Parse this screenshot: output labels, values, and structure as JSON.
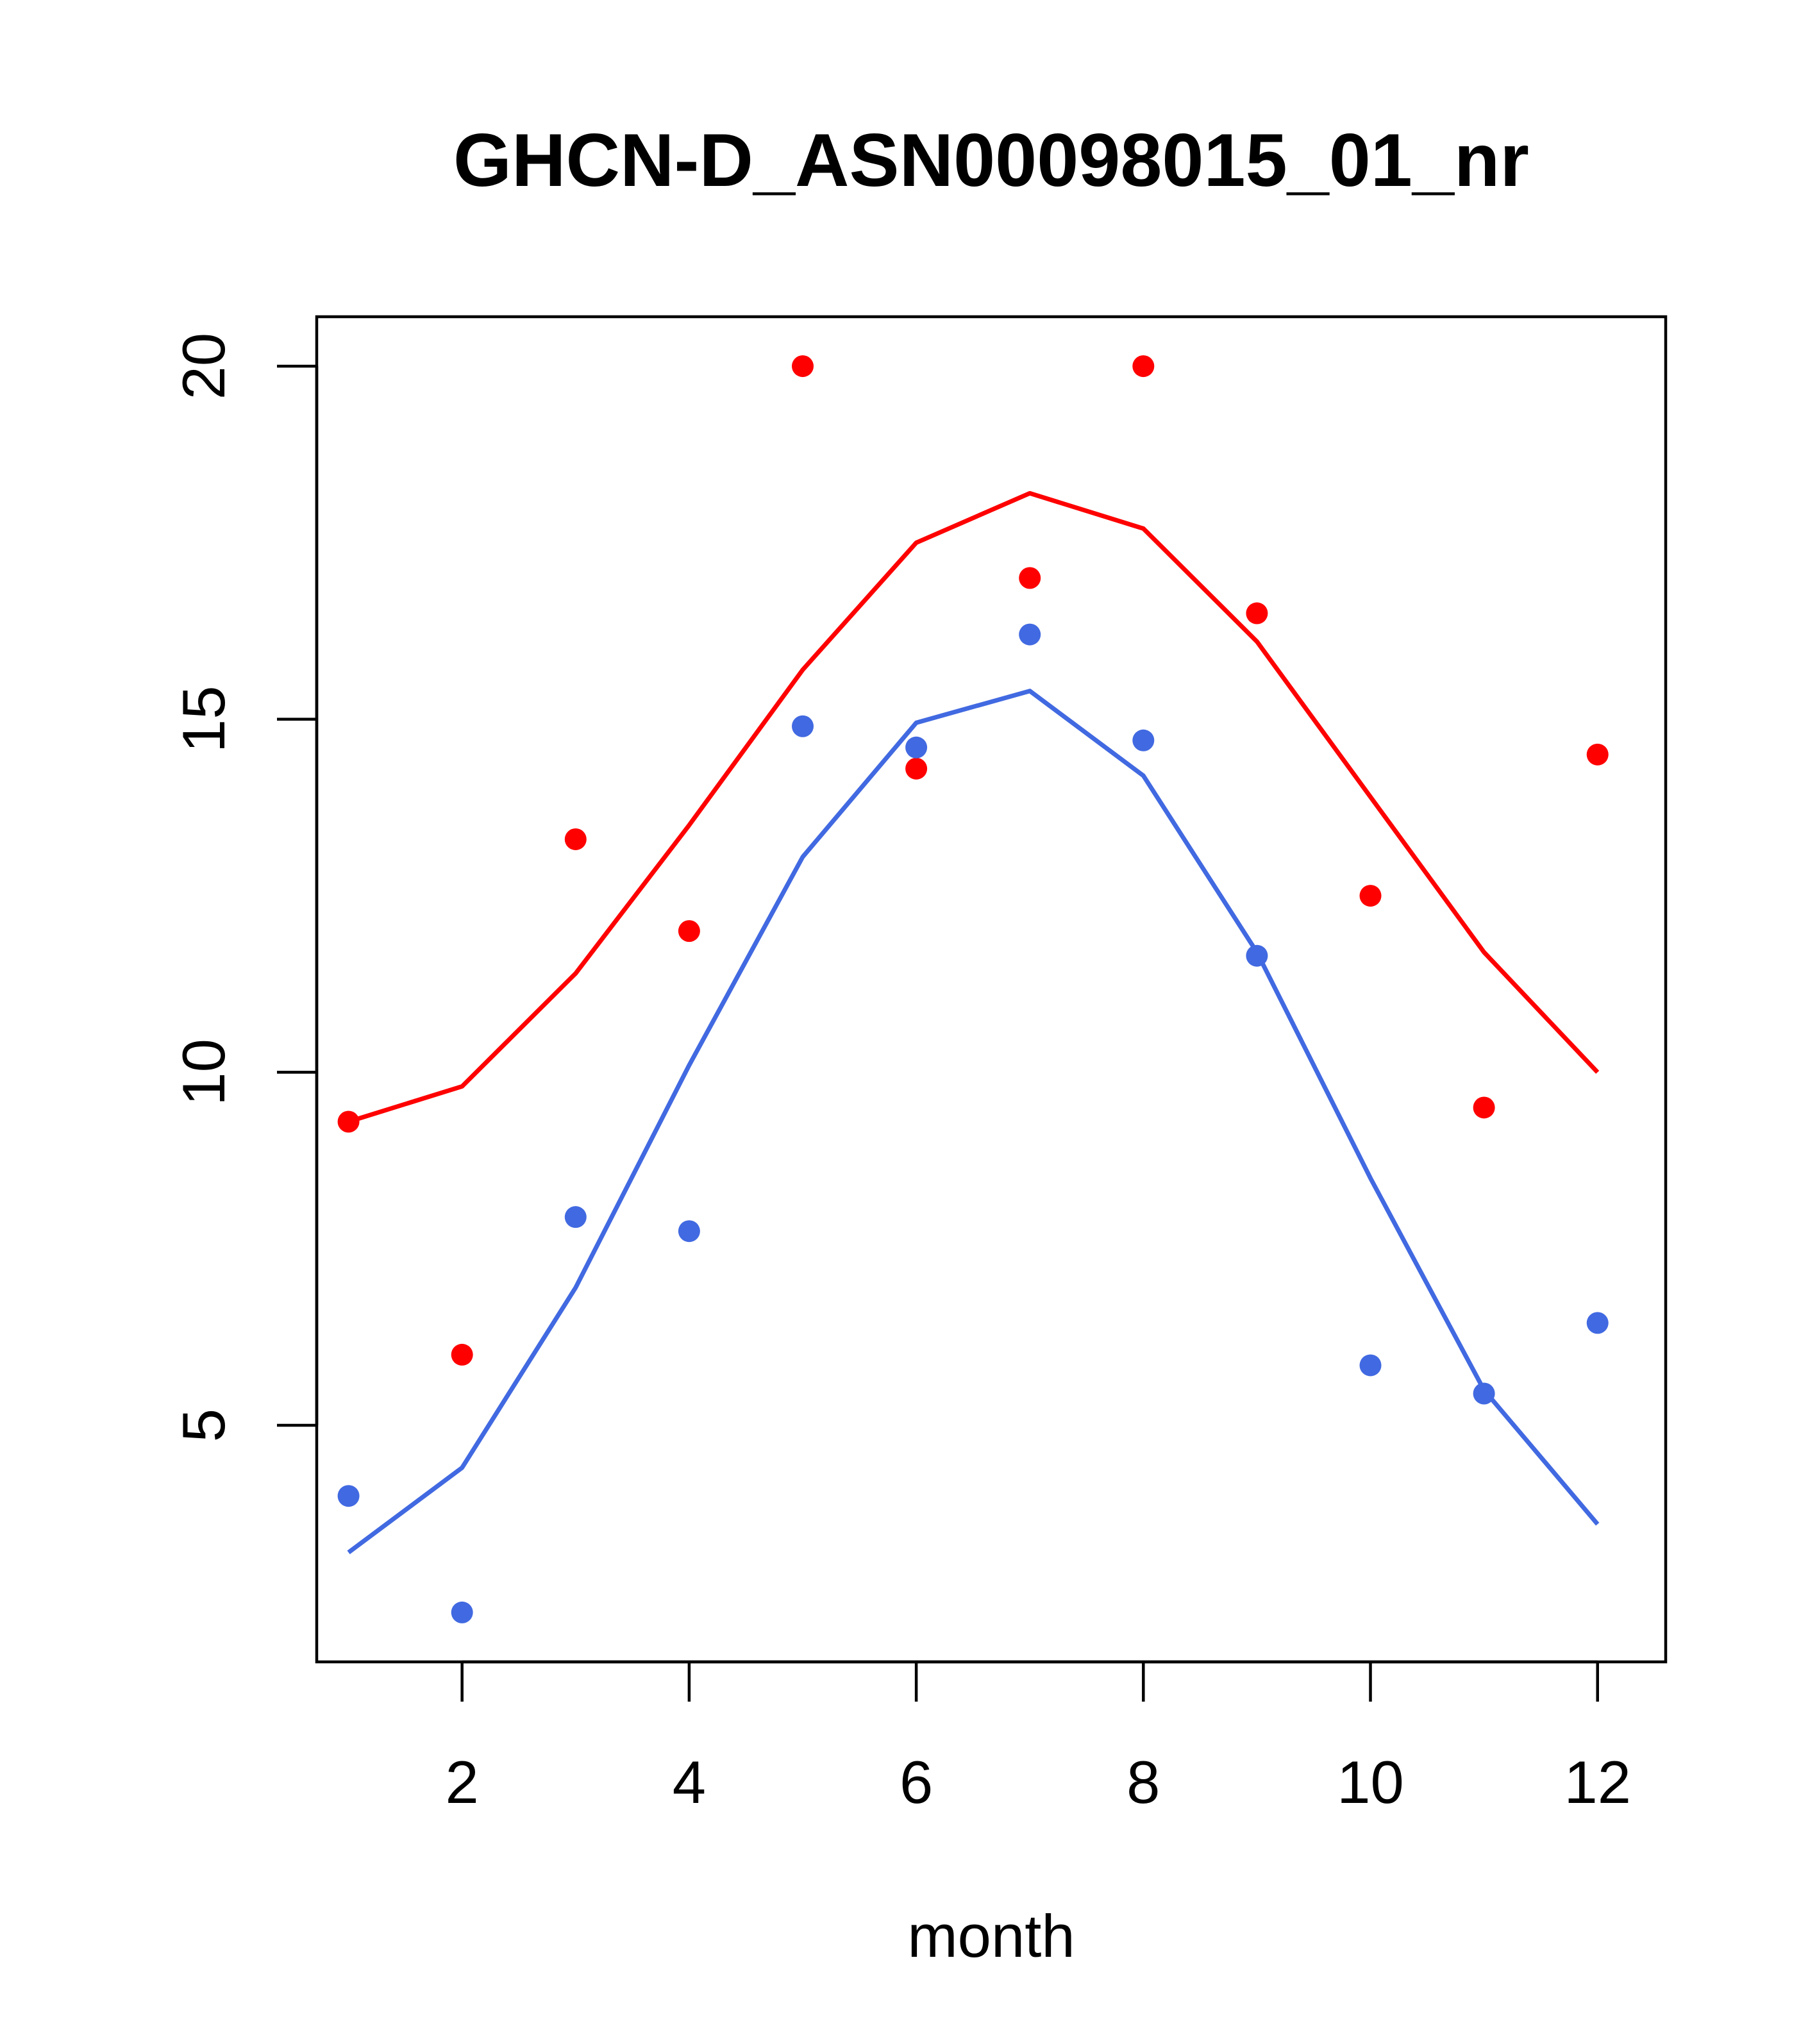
{
  "chart_data": {
    "type": "scatter",
    "title": "GHCN-D_ASN00098015_01_nr",
    "xlabel": "month",
    "ylabel": "",
    "xlim": [
      0.72,
      12.6
    ],
    "ylim": [
      1.65,
      20.7
    ],
    "x_ticks": [
      2,
      4,
      6,
      8,
      10,
      12
    ],
    "y_ticks": [
      5,
      10,
      15,
      20
    ],
    "grid": false,
    "legend": "none",
    "x": [
      1,
      2,
      3,
      4,
      5,
      6,
      7,
      8,
      9,
      10,
      11,
      12
    ],
    "series": [
      {
        "color": "#FF0000",
        "points": [
          9.3,
          6.0,
          13.3,
          12.0,
          20.0,
          14.3,
          17.0,
          20.0,
          16.5,
          12.5,
          9.5,
          14.5
        ],
        "line": [
          9.3,
          9.8,
          11.4,
          13.5,
          15.7,
          17.5,
          18.2,
          17.7,
          16.1,
          13.9,
          11.7,
          10.0
        ]
      },
      {
        "color": "#4169E1",
        "points": [
          4.0,
          2.35,
          7.95,
          7.75,
          14.9,
          14.6,
          16.2,
          14.7,
          11.65,
          5.85,
          5.45,
          6.45
        ],
        "line": [
          3.2,
          4.4,
          6.95,
          10.1,
          13.05,
          14.95,
          15.4,
          14.2,
          11.7,
          8.5,
          5.5,
          3.6
        ]
      }
    ]
  }
}
